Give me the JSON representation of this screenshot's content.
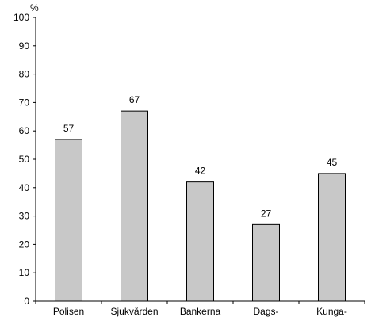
{
  "chart_data": {
    "type": "bar",
    "categories": [
      "Polisen",
      "Sjukvården",
      "Bankerna",
      "Dags-",
      "Kunga-"
    ],
    "values": [
      57,
      67,
      42,
      27,
      45
    ],
    "ylabel": "%",
    "ylim": [
      0,
      100
    ],
    "yticks": [
      0,
      10,
      20,
      30,
      40,
      50,
      60,
      70,
      80,
      90,
      100
    ],
    "grid": false,
    "legend": "none",
    "data_labels": true,
    "colors": {
      "bar_fill": "#c8c8c8",
      "bar_stroke": "#000000",
      "axis": "#000000"
    }
  }
}
